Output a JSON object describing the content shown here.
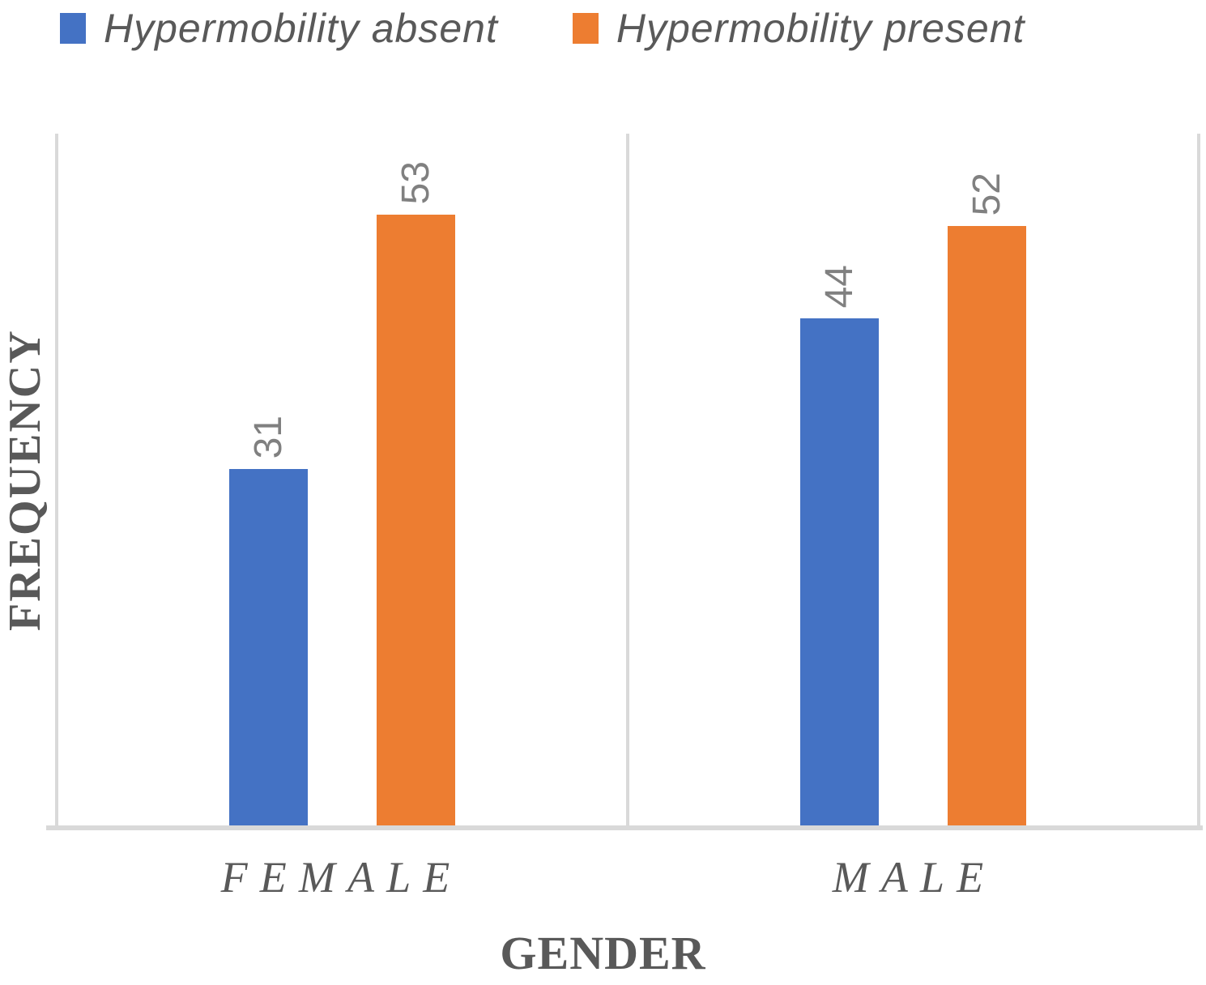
{
  "chart_data": {
    "type": "bar",
    "title": "",
    "categories": [
      "FEMALE",
      "MALE"
    ],
    "series": [
      {
        "name": "Hypermobility absent",
        "color": "#4472C4",
        "values": [
          31,
          44
        ]
      },
      {
        "name": "Hypermobility present",
        "color": "#ED7D31",
        "values": [
          53,
          52
        ]
      }
    ],
    "xlabel": "GENDER",
    "ylabel": "FREQUENCY",
    "ylim": [
      0,
      60
    ],
    "grid": false,
    "legend_position": "top",
    "data_labels": true,
    "data_label_rotation": -90
  },
  "colors": {
    "bar_absent": "#4472C4",
    "bar_present": "#ED7D31",
    "axis_line": "#D9D9D9",
    "title_text": "#595959",
    "data_label_text": "#808080"
  }
}
